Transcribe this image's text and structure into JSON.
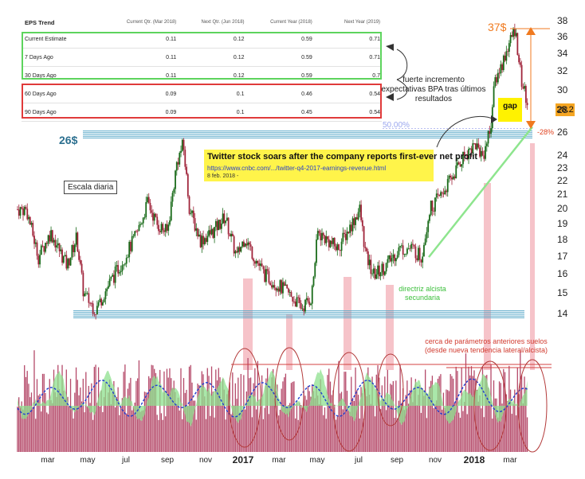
{
  "eps_table": {
    "title": "EPS Trend",
    "columns": [
      "Current Qtr. (Mar 2018)",
      "Next Qtr. (Jun 2018)",
      "Current Year (2018)",
      "Next Year (2019)"
    ],
    "rows": [
      {
        "label": "Current Estimate",
        "values": [
          "0.11",
          "0.12",
          "0.59",
          "0.71"
        ]
      },
      {
        "label": "7 Days Ago",
        "values": [
          "0.11",
          "0.12",
          "0.59",
          "0.71"
        ]
      },
      {
        "label": "30 Days Ago",
        "values": [
          "0.11",
          "0.12",
          "0.59",
          "0.7"
        ]
      },
      {
        "label": "60 Days Ago",
        "values": [
          "0.09",
          "0.1",
          "0.46",
          "0.54"
        ]
      },
      {
        "label": "90 Days Ago",
        "values": [
          "0.09",
          "0.1",
          "0.45",
          "0.54"
        ]
      }
    ]
  },
  "annotations": {
    "level_26": "26$",
    "level_37": "37$",
    "fib_50": "50.00%",
    "pct_drop": "-28%",
    "gap": "gap",
    "current_price": "28.2",
    "escala": "Escala diaria",
    "eps_note": "fuerte incremento expectativas BPA tras últimos resultados",
    "trendline_note": "directriz alcista secundaria",
    "floors_note": "cerca de parámetros anteriores suelos (desde nueva tendencia lateral/alcista)"
  },
  "news": {
    "headline": "Twitter stock soars after the company reports first-ever net profit",
    "url": "https://www.cnbc.com/.../twitter-q4-2017-earnings-revenue.html",
    "date": "8 feb. 2018 -"
  },
  "colors": {
    "up_candle": "#1a6b1a",
    "down_candle": "#a0253b",
    "volume_bar": "#b54a6a",
    "indicator_fill": "#8ee08e",
    "indicator_line": "#1f3fd1",
    "support_lines": "#5aa8c8",
    "highlight": "#f4b8c0",
    "trendline": "#8ee58e",
    "gap_box": "#fff200",
    "news_box": "#fff44a"
  },
  "chart_data": {
    "type": "candlestick",
    "ylim": [
      13.5,
      38.5
    ],
    "yscale": "log",
    "y_ticks": [
      "38",
      "36",
      "34",
      "32",
      "30",
      "28",
      "26",
      "24",
      "23",
      "22",
      "21",
      "20",
      "19",
      "18",
      "17",
      "16",
      "15",
      "14"
    ],
    "x_ticks": [
      {
        "label": "mar",
        "year": false
      },
      {
        "label": "may",
        "year": false
      },
      {
        "label": "jul",
        "year": false
      },
      {
        "label": "sep",
        "year": false
      },
      {
        "label": "nov",
        "year": false
      },
      {
        "label": "2017",
        "year": true
      },
      {
        "label": "mar",
        "year": false
      },
      {
        "label": "may",
        "year": false
      },
      {
        "label": "jul",
        "year": false
      },
      {
        "label": "sep",
        "year": false
      },
      {
        "label": "nov",
        "year": false
      },
      {
        "label": "2018",
        "year": true
      },
      {
        "label": "mar",
        "year": false
      }
    ],
    "price_path": [
      {
        "date": "2016-02-01",
        "close": 20.0
      },
      {
        "date": "2016-02-20",
        "close": 17.0
      },
      {
        "date": "2016-03-10",
        "close": 18.5
      },
      {
        "date": "2016-04-05",
        "close": 16.5
      },
      {
        "date": "2016-04-20",
        "close": 18.2
      },
      {
        "date": "2016-05-01",
        "close": 15.0
      },
      {
        "date": "2016-05-20",
        "close": 14.2
      },
      {
        "date": "2016-06-10",
        "close": 15.5
      },
      {
        "date": "2016-07-05",
        "close": 17.0
      },
      {
        "date": "2016-07-25",
        "close": 18.5
      },
      {
        "date": "2016-08-10",
        "close": 20.5
      },
      {
        "date": "2016-08-25",
        "close": 19.0
      },
      {
        "date": "2016-09-10",
        "close": 18.5
      },
      {
        "date": "2016-09-25",
        "close": 23.5
      },
      {
        "date": "2016-10-05",
        "close": 25.0
      },
      {
        "date": "2016-10-15",
        "close": 20.0
      },
      {
        "date": "2016-11-01",
        "close": 18.0
      },
      {
        "date": "2016-11-20",
        "close": 18.5
      },
      {
        "date": "2016-12-10",
        "close": 19.5
      },
      {
        "date": "2016-12-28",
        "close": 17.0
      },
      {
        "date": "2017-01-10",
        "close": 18.2
      },
      {
        "date": "2017-01-25",
        "close": 17.0
      },
      {
        "date": "2017-02-10",
        "close": 16.0
      },
      {
        "date": "2017-03-01",
        "close": 15.5
      },
      {
        "date": "2017-03-20",
        "close": 15.0
      },
      {
        "date": "2017-04-10",
        "close": 14.3
      },
      {
        "date": "2017-04-25",
        "close": 14.8
      },
      {
        "date": "2017-05-05",
        "close": 18.5
      },
      {
        "date": "2017-05-20",
        "close": 18.0
      },
      {
        "date": "2017-06-05",
        "close": 17.5
      },
      {
        "date": "2017-06-20",
        "close": 18.5
      },
      {
        "date": "2017-07-10",
        "close": 20.0
      },
      {
        "date": "2017-07-20",
        "close": 17.0
      },
      {
        "date": "2017-08-01",
        "close": 16.0
      },
      {
        "date": "2017-08-20",
        "close": 16.5
      },
      {
        "date": "2017-09-10",
        "close": 17.5
      },
      {
        "date": "2017-10-01",
        "close": 17.5
      },
      {
        "date": "2017-10-15",
        "close": 17.0
      },
      {
        "date": "2017-10-28",
        "close": 20.0
      },
      {
        "date": "2017-11-15",
        "close": 21.0
      },
      {
        "date": "2017-12-05",
        "close": 22.5
      },
      {
        "date": "2017-12-20",
        "close": 24.0
      },
      {
        "date": "2018-01-08",
        "close": 25.0
      },
      {
        "date": "2018-01-20",
        "close": 24.0
      },
      {
        "date": "2018-02-01",
        "close": 26.5
      },
      {
        "date": "2018-02-08",
        "close": 31.0
      },
      {
        "date": "2018-02-20",
        "close": 33.0
      },
      {
        "date": "2018-03-01",
        "close": 35.0
      },
      {
        "date": "2018-03-12",
        "close": 37.0
      },
      {
        "date": "2018-03-22",
        "close": 31.0
      },
      {
        "date": "2018-04-02",
        "close": 28.2
      }
    ],
    "horizontal_levels": [
      26,
      14
    ],
    "date_range": [
      "2016-01-18",
      "2018-04-08"
    ]
  }
}
